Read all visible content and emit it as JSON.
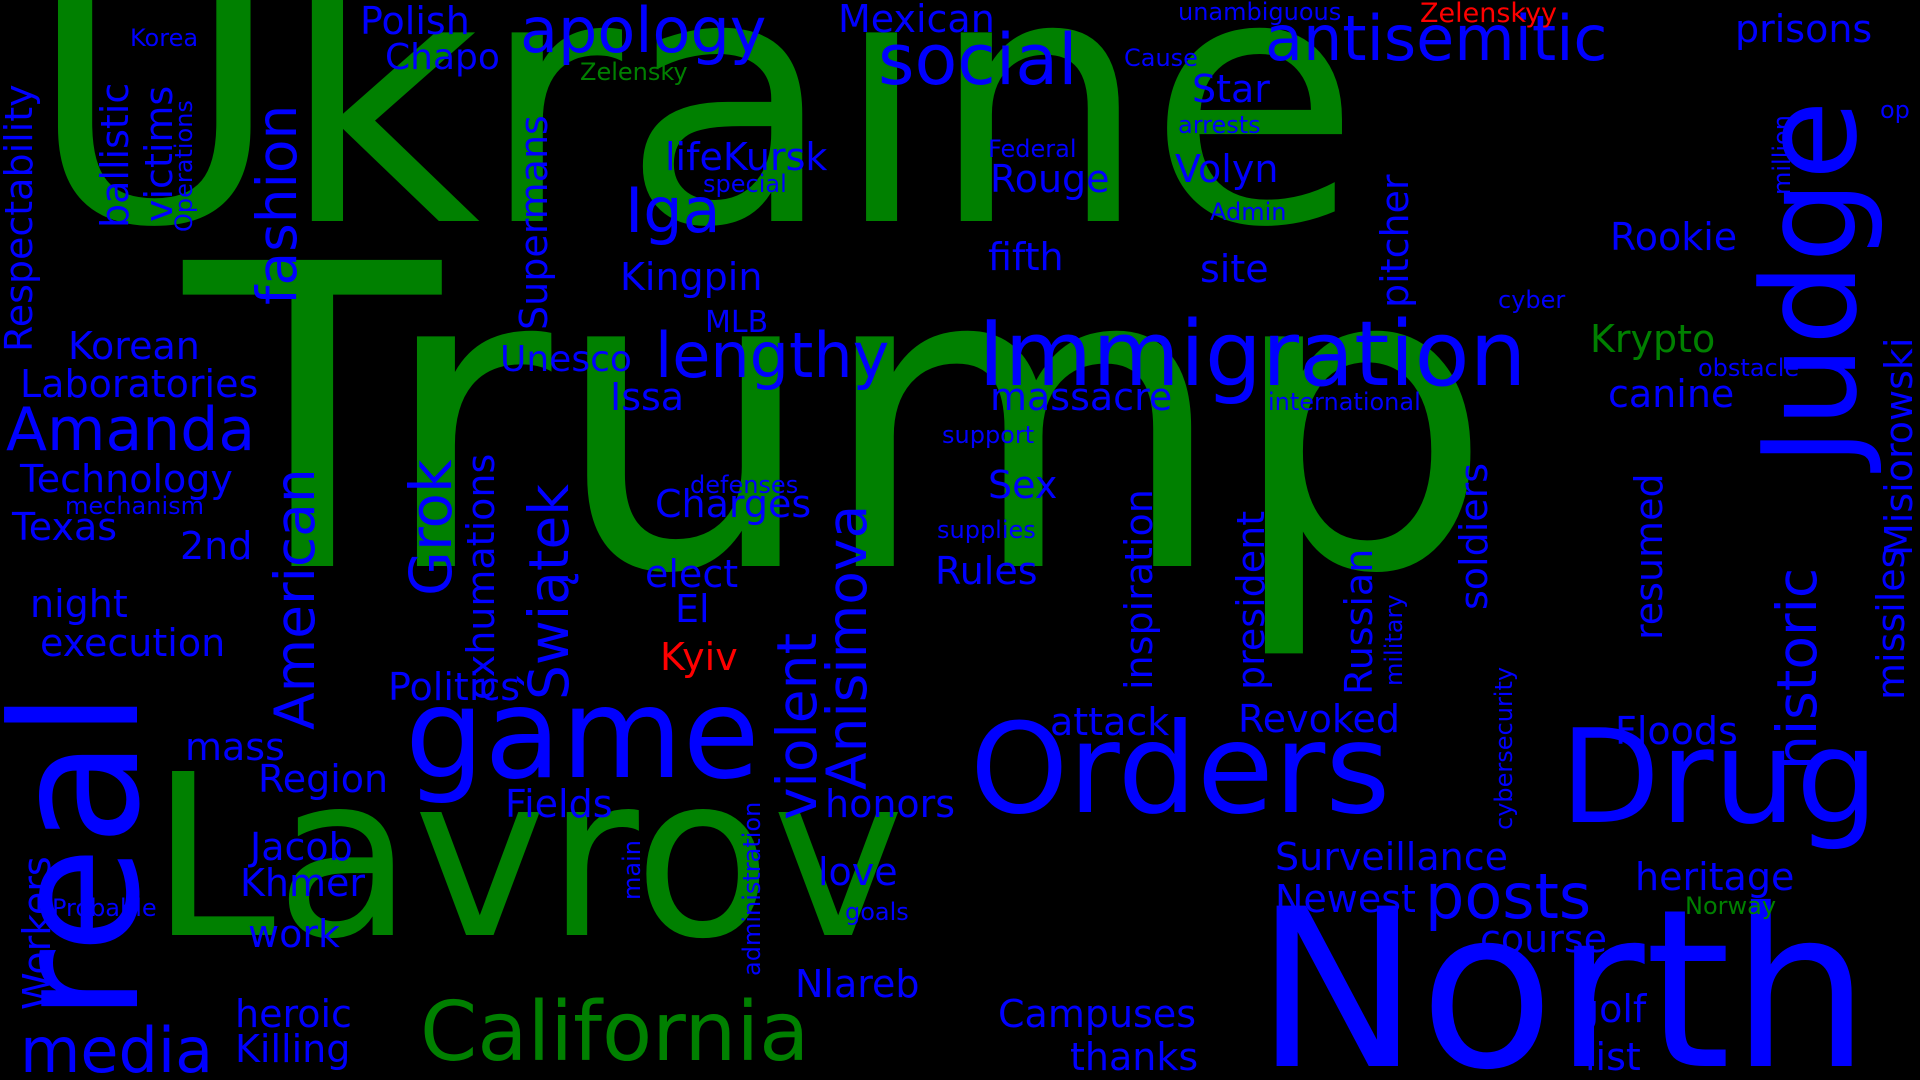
{
  "colors": {
    "background": "#000000",
    "green": "#008000",
    "blue": "#0000ff",
    "red": "#ff0000"
  },
  "words": {
    "trump": "Trump",
    "ukraine": "Ukraine",
    "lavrov": "Lavrov",
    "north": "North",
    "real": "real",
    "judge": "Judge",
    "drug": "Drug",
    "orders": "Orders",
    "immigration": "Immigration",
    "game": "game",
    "california": "California",
    "social": "social",
    "antisemitic": "antisemitic",
    "apology": "apology",
    "posts": "posts",
    "lengthy": "lengthy",
    "media": "media",
    "amanda": "Amanda",
    "fashion": "fashion",
    "american": "American",
    "swiatek": "Świątek",
    "anisimova": "Anisimova",
    "violent": "violent",
    "historic": "historic",
    "iga": "Iga",
    "grok": "Grok",
    "prisons": "prisons",
    "mexican": "Mexican",
    "polish": "Polish",
    "chapo": "Chapo",
    "korea": "Korea",
    "zelensky": "Zelensky",
    "zelenskyy": "Zelenskyy",
    "unambiguous": "unambiguous",
    "cause": "Cause",
    "star": "Star",
    "arrests": "arrests",
    "lifekursk": "lifeKursk",
    "federal": "Federal",
    "special": "special",
    "rouge": "Rouge",
    "volyn": "Volyn",
    "admin": "Admin",
    "fifth": "fifth",
    "site": "site",
    "kingpin": "Kingpin",
    "rookie": "Rookie",
    "cyber": "cyber",
    "krypto": "Krypto",
    "mlb": "MLB",
    "unesco": "Unesco",
    "issa": "Issa",
    "massacre": "massacre",
    "international": "international",
    "obstacle": "obstacle",
    "canine": "canine",
    "korean": "Korean",
    "laboratories": "Laboratories",
    "technology": "Technology",
    "mechanism": "mechanism",
    "texas": "Texas",
    "second": "2nd",
    "night": "night",
    "execution": "execution",
    "support": "support",
    "defenses": "defenses",
    "charges": "Charges",
    "sex": "Sex",
    "supplies": "supplies",
    "elect": "elect",
    "el": "El",
    "rules": "Rules",
    "kyiv": "Kyiv",
    "politics": "Politics",
    "attack": "attack",
    "revoked": "Revoked",
    "floods": "Floods",
    "mass": "mass",
    "region": "Region",
    "fields": "Fields",
    "honors": "honors",
    "jacob": "Jacob",
    "khmer": "Khmer",
    "love": "love",
    "surveillance": "Surveillance",
    "heritage": "heritage",
    "newest": "Newest",
    "norway": "Norway",
    "probable": "Probable",
    "goals": "goals",
    "work": "work",
    "course": "course",
    "nlareb": "Nlareb",
    "campuses": "Campuses",
    "golf": "golf",
    "heroic": "heroic",
    "killing": "Killing",
    "thanks": "thanks",
    "list": "list",
    "respectability": "Respectability",
    "ballistic": "ballistic",
    "victims": "victims",
    "operations": "Operations",
    "supermans": "Supermans",
    "exhumations": "exhumations",
    "inspiration": "inspiration",
    "president": "president",
    "soldiers": "soldiers",
    "russian": "Russian",
    "military": "military",
    "pitcher": "pitcher",
    "resumed": "resumed",
    "missiles": "missiles",
    "misiorowski": "Misiorowski",
    "million": "million",
    "op": "op",
    "cybersecurity": "cybersecurity",
    "workers": "Workers",
    "main": "main",
    "administration": "administration"
  }
}
